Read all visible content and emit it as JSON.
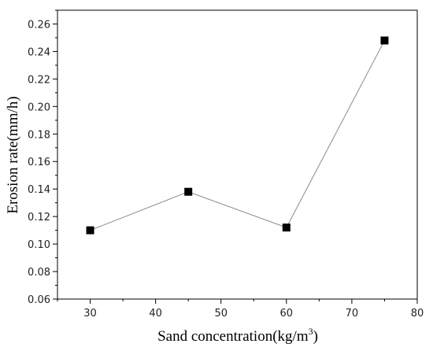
{
  "chart_data": {
    "type": "line",
    "title": "",
    "xlabel": "Sand concentration(kg/m",
    "xlabel_sup": "3",
    "xlabel_tail": ")",
    "ylabel": "Erosion rate(mm/h)",
    "xlim": [
      25,
      80
    ],
    "ylim": [
      0.06,
      0.27
    ],
    "x_ticks": [
      30,
      40,
      50,
      60,
      70,
      80
    ],
    "y_ticks": [
      0.06,
      0.08,
      0.1,
      0.12,
      0.14,
      0.16,
      0.18,
      0.2,
      0.22,
      0.24,
      0.26
    ],
    "x_tick_labels": [
      "30",
      "40",
      "50",
      "60",
      "70",
      "80"
    ],
    "y_tick_labels": [
      "0.06",
      "0.08",
      "0.10",
      "0.12",
      "0.14",
      "0.16",
      "0.18",
      "0.20",
      "0.22",
      "0.24",
      "0.26"
    ],
    "series": [
      {
        "x": [
          30,
          45,
          60,
          75
        ],
        "y": [
          0.11,
          0.138,
          0.112,
          0.248
        ],
        "marker": "square",
        "marker_color": "#000000",
        "line_color": "#8a8a8a"
      }
    ],
    "grid": false,
    "legend": "none"
  }
}
